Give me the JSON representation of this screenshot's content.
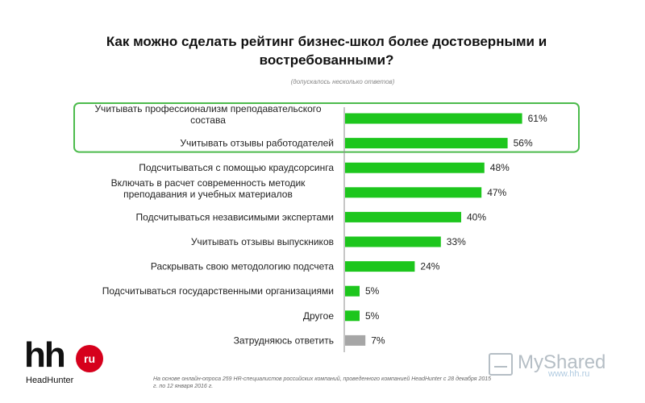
{
  "chart_data": {
    "type": "bar",
    "orientation": "horizontal",
    "title": "Как можно сделать рейтинг бизнес-школ более достоверными и востребованными?",
    "subtitle": "(допускалось несколько ответов)",
    "categories": [
      "Учитывать профессионализм преподавательского состава",
      "Учитывать отзывы работодателей",
      "Подсчитываться с помощью краудсорсинга",
      "Включать в расчет современность методик преподавания и учебных материалов",
      "Подсчитываться независимыми экспертами",
      "Учитывать отзывы выпускников",
      "Раскрывать свою методологию подсчета",
      "Подсчитываться государственными организациями",
      "Другое",
      "Затрудняюсь ответить"
    ],
    "label_lines": [
      [
        "Учитывать профессионализм преподавательского",
        "состава"
      ],
      [
        "Учитывать отзывы работодателей"
      ],
      [
        "Подсчитываться с помощью краудсорсинга"
      ],
      [
        "Включать в расчет современность методик",
        "преподавания и учебных материалов"
      ],
      [
        "Подсчитываться независимыми экспертами"
      ],
      [
        "Учитывать отзывы выпускников"
      ],
      [
        "Раскрывать свою методологию подсчета"
      ],
      [
        "Подсчитываться государственными организациями"
      ],
      [
        "Другое"
      ],
      [
        "Затрудняюсь ответить"
      ]
    ],
    "values": [
      61,
      56,
      48,
      47,
      40,
      33,
      24,
      5,
      5,
      7
    ],
    "value_labels": [
      "61%",
      "56%",
      "48%",
      "47%",
      "40%",
      "33%",
      "24%",
      "5%",
      "5%",
      "7%"
    ],
    "unit": "%",
    "xlim": [
      0,
      100
    ],
    "highlighted": [
      0,
      1
    ],
    "colors": {
      "bar": "#1dc61d",
      "bar_other": "#a6a6a6",
      "highlight_border": "#4cbb4c",
      "axis": "#8c8c8c"
    },
    "grid": false,
    "legend": "none"
  },
  "branding": {
    "logo_mark": "hh",
    "logo_badge": "ru",
    "logo_name": "HeadHunter"
  },
  "footnote": "На основе онлайн-опроса 259 HR-специалистов российских компаний, проведенного компанией HeadHunter с 28 декабря 2015 г. по 12 января 2016 г.",
  "watermark": {
    "text": "MyShared",
    "url": "www.hh.ru"
  }
}
